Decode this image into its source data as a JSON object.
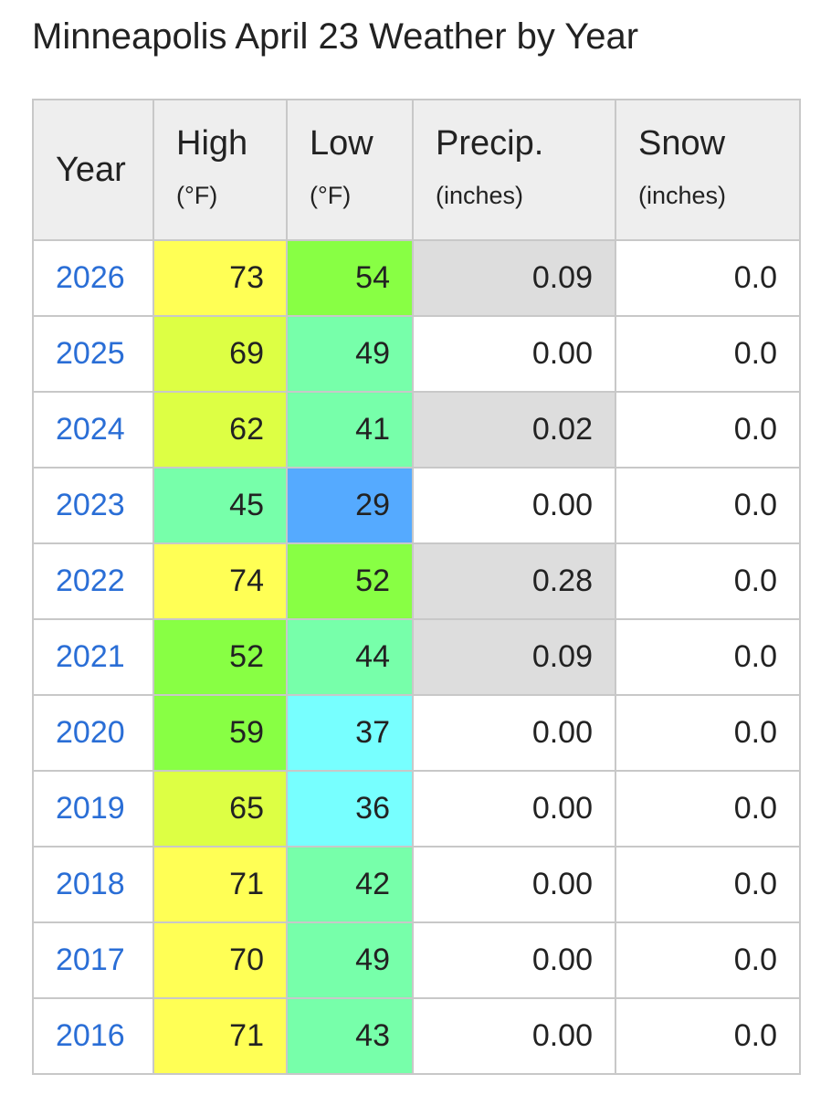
{
  "title": "Minneapolis April 23 Weather by Year",
  "table": {
    "headers": [
      {
        "label": "Year",
        "unit": ""
      },
      {
        "label": "High",
        "unit": "(°F)"
      },
      {
        "label": "Low",
        "unit": "(°F)"
      },
      {
        "label": "Precip.",
        "unit": "(inches)"
      },
      {
        "label": "Snow",
        "unit": "(inches)"
      }
    ],
    "rows": [
      {
        "year": "2026",
        "high": "73",
        "low": "54",
        "precip": "0.09",
        "snow": "0.0"
      },
      {
        "year": "2025",
        "high": "69",
        "low": "49",
        "precip": "0.00",
        "snow": "0.0"
      },
      {
        "year": "2024",
        "high": "62",
        "low": "41",
        "precip": "0.02",
        "snow": "0.0"
      },
      {
        "year": "2023",
        "high": "45",
        "low": "29",
        "precip": "0.00",
        "snow": "0.0"
      },
      {
        "year": "2022",
        "high": "74",
        "low": "52",
        "precip": "0.28",
        "snow": "0.0"
      },
      {
        "year": "2021",
        "high": "52",
        "low": "44",
        "precip": "0.09",
        "snow": "0.0"
      },
      {
        "year": "2020",
        "high": "59",
        "low": "37",
        "precip": "0.00",
        "snow": "0.0"
      },
      {
        "year": "2019",
        "high": "65",
        "low": "36",
        "precip": "0.00",
        "snow": "0.0"
      },
      {
        "year": "2018",
        "high": "71",
        "low": "42",
        "precip": "0.00",
        "snow": "0.0"
      },
      {
        "year": "2017",
        "high": "70",
        "low": "49",
        "precip": "0.00",
        "snow": "0.0"
      },
      {
        "year": "2016",
        "high": "71",
        "low": "43",
        "precip": "0.00",
        "snow": "0.0"
      }
    ]
  },
  "colors": {
    "year_link": "#2a6ed6",
    "header_bg": "#eeeeee",
    "border": "#c8c8c8",
    "precip_nonzero_bg": "#dddddd",
    "temp_scale": [
      {
        "min": 70,
        "color": "#ffff55"
      },
      {
        "min": 60,
        "color": "#ddff44"
      },
      {
        "min": 50,
        "color": "#88ff44"
      },
      {
        "min": 40,
        "color": "#77ffaa"
      },
      {
        "min": 30,
        "color": "#77ffff"
      },
      {
        "min": 0,
        "color": "#55aaff"
      }
    ]
  }
}
